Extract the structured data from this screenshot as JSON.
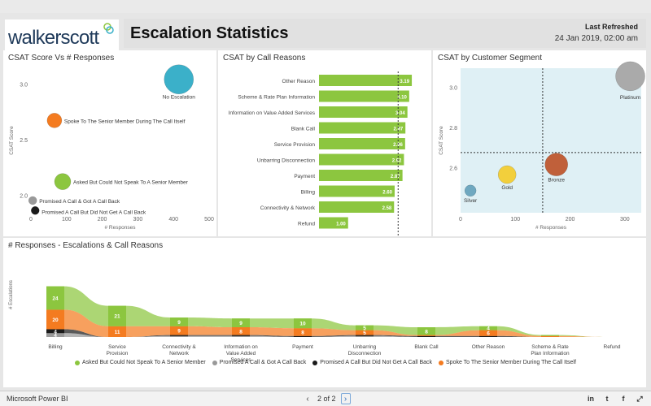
{
  "header": {
    "logo_text": "walkerscott",
    "title": "Escalation Statistics",
    "refresh_label": "Last Refreshed",
    "refresh_value": "24 Jan 2019, 02:00 am"
  },
  "footer": {
    "brand": "Microsoft Power BI",
    "page": "2 of 2",
    "prev": "‹",
    "next": "›",
    "share_icons": [
      "in",
      "t",
      "f",
      "⤢"
    ]
  },
  "colors": {
    "green": "#8cc63f",
    "orange": "#f47b20",
    "black": "#1a1a1a",
    "gray": "#999999",
    "teal": "#3bb0c9",
    "segment_bg": "#dff0f5"
  },
  "chart_data": [
    {
      "type": "scatter",
      "title": "CSAT Score Vs # Responses",
      "xlabel": "# Responses",
      "ylabel": "CSAT Score",
      "xlim": [
        0,
        500
      ],
      "ylim": [
        1.85,
        3.15
      ],
      "xticks": [
        0,
        100,
        200,
        300,
        400,
        500
      ],
      "yticks": [
        2.0,
        2.5,
        3.0
      ],
      "ytick_labels": [
        "2.0",
        "2.5",
        "3.0"
      ],
      "points": [
        {
          "label": "No Escalation",
          "x": 415,
          "y": 3.05,
          "size": 18,
          "color": "#3bb0c9"
        },
        {
          "label": "Spoke To The Senior Member During The Call Itself",
          "x": 66,
          "y": 2.68,
          "size": 9,
          "color": "#f47b20"
        },
        {
          "label": "Asked But Could Not Speak To A Senior Member",
          "x": 89,
          "y": 2.13,
          "size": 10,
          "color": "#8cc63f"
        },
        {
          "label": "Promised A Call & Got A Call Back",
          "x": 5,
          "y": 1.96,
          "size": 5,
          "color": "#999999"
        },
        {
          "label": "Promised A Call But Did Not Get A Call Back",
          "x": 12,
          "y": 1.87,
          "size": 5,
          "color": "#1a1a1a"
        }
      ]
    },
    {
      "type": "bar",
      "title": "CSAT by Call Reasons",
      "categories": [
        "Other Reason",
        "Scheme & Rate Plan Information",
        "Information on Value Added Services",
        "Blank Call",
        "Service Provision",
        "Unbarring Disconnection",
        "Payment",
        "Billing",
        "Connectivity & Network",
        "Refund"
      ],
      "values": [
        3.19,
        3.1,
        3.04,
        2.97,
        2.96,
        2.92,
        2.87,
        2.6,
        2.58,
        1.0
      ],
      "xlim": [
        0,
        3.3
      ],
      "average": 2.72,
      "color": "#8cc63f"
    },
    {
      "type": "scatter",
      "title": "CSAT by Customer Segment",
      "xlabel": "# Responses",
      "ylabel": "CSAT Score",
      "xlim": [
        0,
        330
      ],
      "ylim": [
        2.38,
        3.1
      ],
      "xticks": [
        0,
        100,
        200,
        300
      ],
      "yticks": [
        2.6,
        2.8,
        3.0
      ],
      "ytick_labels": [
        "2.6",
        "2.8",
        "3.0"
      ],
      "ref_x": 150,
      "ref_y": 2.68,
      "points": [
        {
          "label": "Platinum",
          "x": 310,
          "y": 3.06,
          "size": 18,
          "color": "#aaaaaa"
        },
        {
          "label": "Bronze",
          "x": 175,
          "y": 2.62,
          "size": 14,
          "color": "#c0603a"
        },
        {
          "label": "Gold",
          "x": 85,
          "y": 2.57,
          "size": 11,
          "color": "#f2cf3c"
        },
        {
          "label": "Silver",
          "x": 18,
          "y": 2.49,
          "size": 7,
          "color": "#6fa8c0"
        }
      ]
    },
    {
      "type": "ribbon",
      "title": "# Responses - Escalations & Call Reasons",
      "ylabel": "# Escalations",
      "categories": [
        "Billing",
        "Service Provision",
        "Connectivity & Network",
        "Information on Value Added Services",
        "Payment",
        "Unbarring Disconnection",
        "Blank Call",
        "Other Reason",
        "Scheme & Rate Plan Information",
        "Refund"
      ],
      "series": [
        {
          "name": "Asked But Could Not Speak To A Senior Member",
          "color": "#8cc63f",
          "values": [
            24,
            21,
            9,
            9,
            10,
            5,
            8,
            4,
            1,
            0
          ],
          "show": [
            true,
            true,
            true,
            true,
            true,
            true,
            true,
            true,
            false,
            false
          ]
        },
        {
          "name": "Spoke To The Senior Member During The Call Itself",
          "color": "#f47b20",
          "values": [
            20,
            11,
            9,
            8,
            8,
            5,
            1,
            6,
            1,
            0
          ],
          "show": [
            true,
            true,
            true,
            true,
            true,
            true,
            false,
            true,
            false,
            false
          ]
        },
        {
          "name": "Promised A Call But Did Not Get A Call Back",
          "color": "#1a1a1a",
          "values": [
            4,
            0,
            1,
            1,
            1,
            1,
            1,
            1,
            0,
            0
          ],
          "show": [
            true,
            false,
            false,
            false,
            false,
            false,
            false,
            false,
            false,
            false
          ]
        },
        {
          "name": "Promised A Call & Got A Call Back",
          "color": "#999999",
          "values": [
            4,
            0,
            1,
            1,
            0,
            1,
            0,
            0,
            0,
            0
          ],
          "show": [
            true,
            false,
            false,
            false,
            false,
            false,
            false,
            false,
            false,
            false
          ]
        }
      ],
      "legend": [
        "Asked But Could Not Speak To A Senior Member",
        "Promised A Call & Got A Call Back",
        "Promised A Call But Did Not Get A Call Back",
        "Spoke To The Senior Member During The Call Itself"
      ]
    }
  ]
}
